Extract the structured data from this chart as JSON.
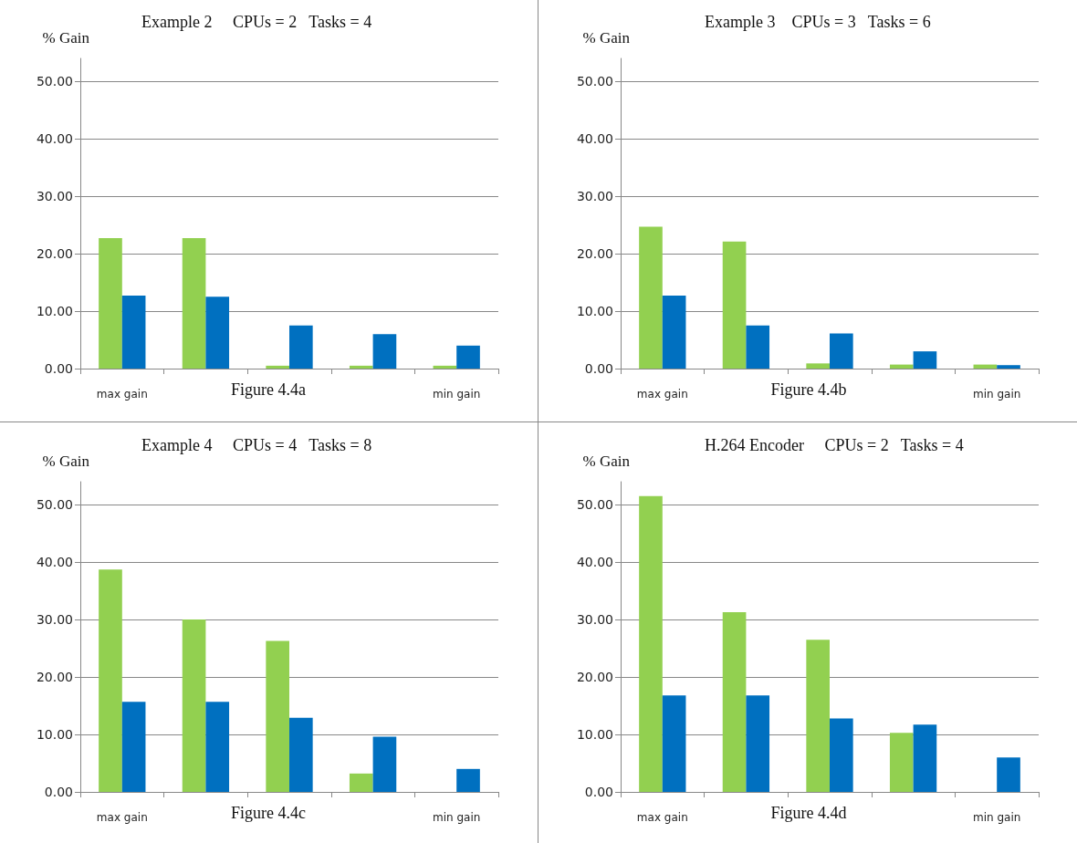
{
  "chart_data": [
    {
      "type": "bar",
      "title": "Example 2     CPUs = 2   Tasks = 4",
      "ylabel": "% Gain",
      "categories": [
        "max gain",
        null,
        null,
        null,
        "min gain"
      ],
      "series": [
        {
          "color": "#92d050",
          "values": [
            22.7,
            22.7,
            0.5,
            0.5,
            0.5
          ]
        },
        {
          "color": "#0070c0",
          "values": [
            12.7,
            12.5,
            7.5,
            6.0,
            4.0
          ]
        }
      ],
      "ylim": [
        0,
        54
      ],
      "yticks": [
        {
          "value": 0,
          "label": "0.00"
        },
        {
          "value": 10,
          "label": "10.00"
        },
        {
          "value": 20,
          "label": "20.00"
        },
        {
          "value": 30,
          "label": "30.00"
        },
        {
          "value": 40,
          "label": "40.00"
        },
        {
          "value": 50,
          "label": "50.00"
        }
      ],
      "grid": "y",
      "annotations": [
        "Figure 4.4a"
      ]
    },
    {
      "type": "bar",
      "title": "Example 3    CPUs = 3   Tasks = 6",
      "ylabel": "% Gain",
      "categories": [
        "max gain",
        null,
        null,
        null,
        "min gain"
      ],
      "series": [
        {
          "color": "#92d050",
          "values": [
            24.7,
            22.1,
            0.9,
            0.7,
            0.7
          ]
        },
        {
          "color": "#0070c0",
          "values": [
            12.7,
            7.5,
            6.1,
            3.0,
            0.6
          ]
        }
      ],
      "ylim": [
        0,
        54
      ],
      "yticks": [
        {
          "value": 0,
          "label": "0.00"
        },
        {
          "value": 10,
          "label": "10.00"
        },
        {
          "value": 20,
          "label": "20.00"
        },
        {
          "value": 30,
          "label": "30.00"
        },
        {
          "value": 40,
          "label": "40.00"
        },
        {
          "value": 50,
          "label": "50.00"
        }
      ],
      "grid": "y",
      "annotations": [
        "Figure 4.4b"
      ]
    },
    {
      "type": "bar",
      "title": "Example 4     CPUs = 4   Tasks = 8",
      "ylabel": "% Gain",
      "categories": [
        "max gain",
        null,
        null,
        null,
        "min gain"
      ],
      "series": [
        {
          "color": "#92d050",
          "values": [
            38.7,
            30.0,
            26.3,
            3.2,
            0
          ]
        },
        {
          "color": "#0070c0",
          "values": [
            15.7,
            15.7,
            12.9,
            9.6,
            4.0
          ]
        }
      ],
      "ylim": [
        0,
        54
      ],
      "yticks": [
        {
          "value": 0,
          "label": "0.00"
        },
        {
          "value": 10,
          "label": "10.00"
        },
        {
          "value": 20,
          "label": "20.00"
        },
        {
          "value": 30,
          "label": "30.00"
        },
        {
          "value": 40,
          "label": "40.00"
        },
        {
          "value": 50,
          "label": "50.00"
        }
      ],
      "grid": "y",
      "annotations": [
        "Figure 4.4c"
      ]
    },
    {
      "type": "bar",
      "title": "H.264 Encoder     CPUs = 2   Tasks = 4",
      "ylabel": "% Gain",
      "categories": [
        "max gain",
        null,
        null,
        null,
        "min gain"
      ],
      "series": [
        {
          "color": "#92d050",
          "values": [
            51.5,
            31.3,
            26.5,
            10.3,
            0
          ]
        },
        {
          "color": "#0070c0",
          "values": [
            16.8,
            16.8,
            12.8,
            11.7,
            6.0
          ]
        }
      ],
      "ylim": [
        0,
        54
      ],
      "yticks": [
        {
          "value": 0,
          "label": "0.00"
        },
        {
          "value": 10,
          "label": "10.00"
        },
        {
          "value": 20,
          "label": "20.00"
        },
        {
          "value": 30,
          "label": "30.00"
        },
        {
          "value": 40,
          "label": "40.00"
        },
        {
          "value": 50,
          "label": "50.00"
        }
      ],
      "grid": "y",
      "annotations": [
        "Figure 4.4d"
      ]
    }
  ]
}
